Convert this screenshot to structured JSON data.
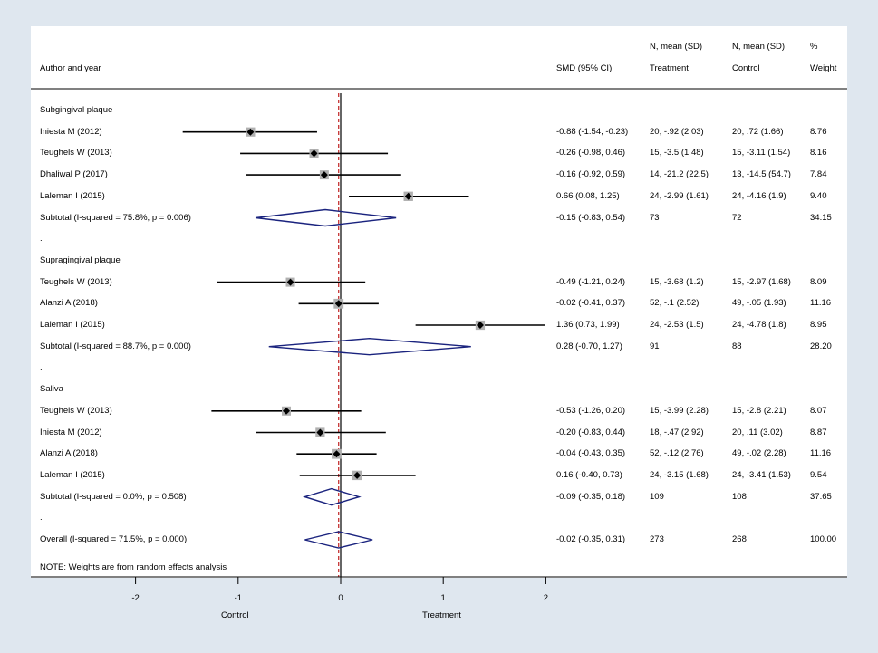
{
  "headers": {
    "author": "Author and year",
    "smd": "SMD (95% CI)",
    "treat_top": "N, mean (SD)",
    "treat_bottom": "Treatment",
    "ctrl_top": "N, mean (SD)",
    "ctrl_bottom": "Control",
    "weight_top": "%",
    "weight_bottom": "Weight"
  },
  "note": "NOTE: Weights are from random effects analysis",
  "colors": {
    "marker": "#000000",
    "diamond": "#1a237e",
    "overall_line": "#8b0000",
    "ref_line": "#c02020",
    "box": "#b0b0b0"
  },
  "chart_data": {
    "type": "forest",
    "xlabel_left": "Control",
    "xlabel_right": "Treatment",
    "xlim": [
      -2,
      2
    ],
    "xticks": [
      -2,
      -1,
      0,
      1,
      2
    ],
    "xtick_labels": [
      "-2",
      "-1",
      "0",
      "1",
      "2"
    ],
    "overall_effect": -0.02,
    "rows": [
      {
        "kind": "group",
        "label": "Subgingival plaque"
      },
      {
        "kind": "study",
        "label": "Iniesta M (2012)",
        "est": -0.88,
        "lo": -1.54,
        "hi": -0.23,
        "ci_text": "-0.88 (-1.54, -0.23)",
        "treat": "20, -.92 (2.03)",
        "ctrl": "20, .72 (1.66)",
        "weight": "8.76"
      },
      {
        "kind": "study",
        "label": "Teughels W (2013)",
        "est": -0.26,
        "lo": -0.98,
        "hi": 0.46,
        "ci_text": "-0.26 (-0.98, 0.46)",
        "treat": "15, -3.5 (1.48)",
        "ctrl": "15, -3.11 (1.54)",
        "weight": "8.16"
      },
      {
        "kind": "study",
        "label": "Dhaliwal P (2017)",
        "est": -0.16,
        "lo": -0.92,
        "hi": 0.59,
        "ci_text": "-0.16 (-0.92, 0.59)",
        "treat": "14, -21.2 (22.5)",
        "ctrl": "13, -14.5 (54.7)",
        "weight": "7.84"
      },
      {
        "kind": "study",
        "label": "Laleman I (2015)",
        "est": 0.66,
        "lo": 0.08,
        "hi": 1.25,
        "ci_text": "0.66 (0.08, 1.25)",
        "treat": "24, -2.99 (1.61)",
        "ctrl": "24, -4.16 (1.9)",
        "weight": "9.40"
      },
      {
        "kind": "subtotal",
        "label": "Subtotal  (I-squared = 75.8%, p = 0.006)",
        "est": -0.15,
        "lo": -0.83,
        "hi": 0.54,
        "ci_text": "-0.15 (-0.83, 0.54)",
        "treat": "73",
        "ctrl": "72",
        "weight": "34.15"
      },
      {
        "kind": "dot",
        "label": "."
      },
      {
        "kind": "group",
        "label": "Supragingival plaque"
      },
      {
        "kind": "study",
        "label": "Teughels W (2013)",
        "est": -0.49,
        "lo": -1.21,
        "hi": 0.24,
        "ci_text": "-0.49 (-1.21, 0.24)",
        "treat": "15, -3.68 (1.2)",
        "ctrl": "15, -2.97 (1.68)",
        "weight": "8.09"
      },
      {
        "kind": "study",
        "label": "Alanzi A (2018)",
        "est": -0.02,
        "lo": -0.41,
        "hi": 0.37,
        "ci_text": "-0.02 (-0.41, 0.37)",
        "treat": "52, -.1 (2.52)",
        "ctrl": "49, -.05 (1.93)",
        "weight": "11.16"
      },
      {
        "kind": "study",
        "label": "Laleman I (2015)",
        "est": 1.36,
        "lo": 0.73,
        "hi": 1.99,
        "ci_text": "1.36 (0.73, 1.99)",
        "treat": "24, -2.53 (1.5)",
        "ctrl": "24, -4.78 (1.8)",
        "weight": "8.95"
      },
      {
        "kind": "subtotal",
        "label": "Subtotal  (I-squared = 88.7%, p = 0.000)",
        "est": 0.28,
        "lo": -0.7,
        "hi": 1.27,
        "ci_text": "0.28 (-0.70, 1.27)",
        "treat": "91",
        "ctrl": "88",
        "weight": "28.20"
      },
      {
        "kind": "dot",
        "label": "."
      },
      {
        "kind": "group",
        "label": "Saliva"
      },
      {
        "kind": "study",
        "label": "Teughels W (2013)",
        "est": -0.53,
        "lo": -1.26,
        "hi": 0.2,
        "ci_text": "-0.53 (-1.26, 0.20)",
        "treat": "15, -3.99 (2.28)",
        "ctrl": "15, -2.8 (2.21)",
        "weight": "8.07"
      },
      {
        "kind": "study",
        "label": "Iniesta M (2012)",
        "est": -0.2,
        "lo": -0.83,
        "hi": 0.44,
        "ci_text": "-0.20 (-0.83, 0.44)",
        "treat": "18, -.47 (2.92)",
        "ctrl": "20, .11 (3.02)",
        "weight": "8.87"
      },
      {
        "kind": "study",
        "label": "Alanzi A (2018)",
        "est": -0.04,
        "lo": -0.43,
        "hi": 0.35,
        "ci_text": "-0.04 (-0.43, 0.35)",
        "treat": "52, -.12 (2.76)",
        "ctrl": "49, -.02 (2.28)",
        "weight": "11.16"
      },
      {
        "kind": "study",
        "label": "Laleman I (2015)",
        "est": 0.16,
        "lo": -0.4,
        "hi": 0.73,
        "ci_text": "0.16 (-0.40, 0.73)",
        "treat": "24, -3.15 (1.68)",
        "ctrl": "24, -3.41 (1.53)",
        "weight": "9.54"
      },
      {
        "kind": "subtotal",
        "label": "Subtotal  (I-squared = 0.0%, p = 0.508)",
        "est": -0.09,
        "lo": -0.35,
        "hi": 0.18,
        "ci_text": "-0.09 (-0.35, 0.18)",
        "treat": "109",
        "ctrl": "108",
        "weight": "37.65"
      },
      {
        "kind": "dot",
        "label": "."
      },
      {
        "kind": "overall",
        "label": "Overall  (I-squared = 71.5%, p = 0.000)",
        "est": -0.02,
        "lo": -0.35,
        "hi": 0.31,
        "ci_text": "-0.02 (-0.35, 0.31)",
        "treat": "273",
        "ctrl": "268",
        "weight": "100.00"
      }
    ]
  }
}
